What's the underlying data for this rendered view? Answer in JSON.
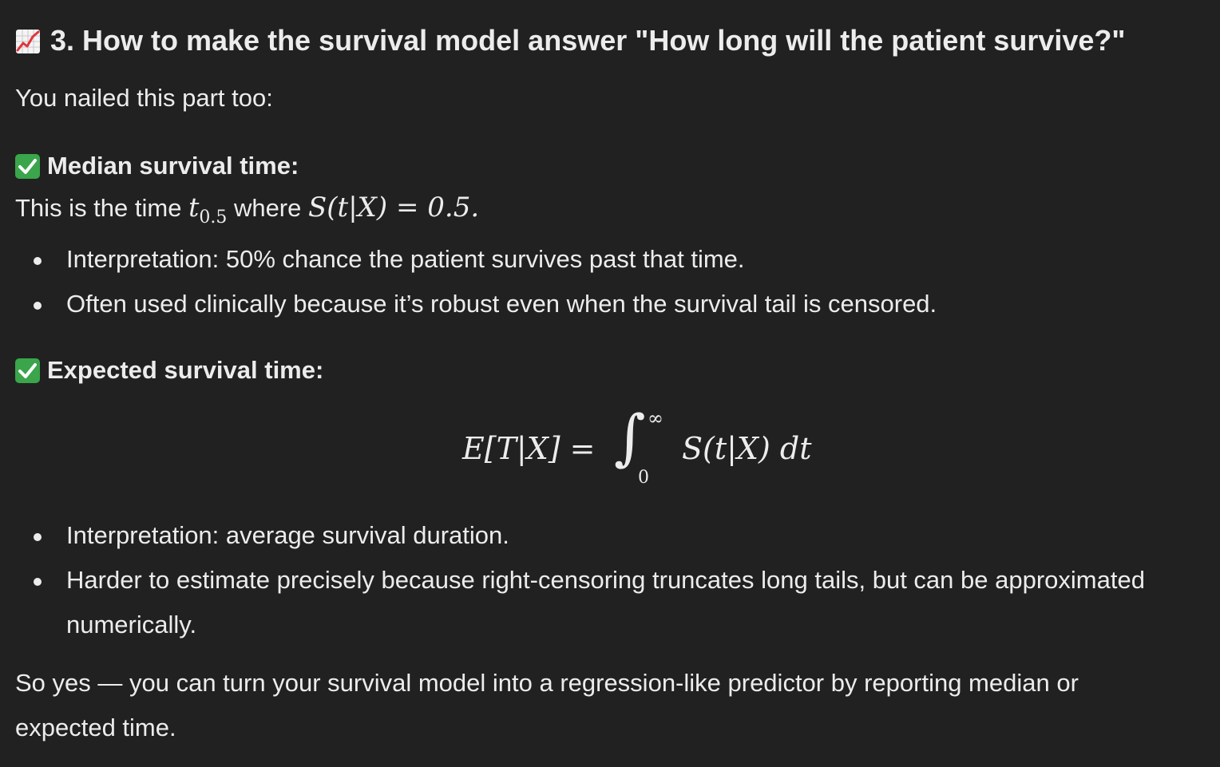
{
  "heading": {
    "icon": "chart-increasing-icon",
    "text": "3. How to make the survival model answer \"How long will the patient survive?\""
  },
  "intro": "You nailed this part too:",
  "median": {
    "icon": "check-mark-button-icon",
    "title": "Median survival time:",
    "line_prefix": "This is the time ",
    "t_sym": "t",
    "t_sub": "0.5",
    "line_mid": " where ",
    "eq": "S(t|X) = 0.5.",
    "bullets": [
      "Interpretation: 50% chance the patient survives past that time.",
      "Often used clinically because it’s robust even when the survival tail is censored."
    ]
  },
  "expected": {
    "icon": "check-mark-button-icon",
    "title": "Expected survival time:",
    "formula_lhs": "E[T|X] =",
    "integral_upper": "∞",
    "integral_lower": "0",
    "formula_rhs": "S(t|X) dt",
    "bullets": [
      "Interpretation: average survival duration.",
      "Harder to estimate precisely because right-censoring truncates long tails, but can be approximated numerically."
    ]
  },
  "closing": "So yes — you can turn your survival model into a regression-like predictor by reporting median or expected time.",
  "colors": {
    "background": "#212121",
    "text": "#ececec",
    "check_green": "#3aa54a"
  }
}
